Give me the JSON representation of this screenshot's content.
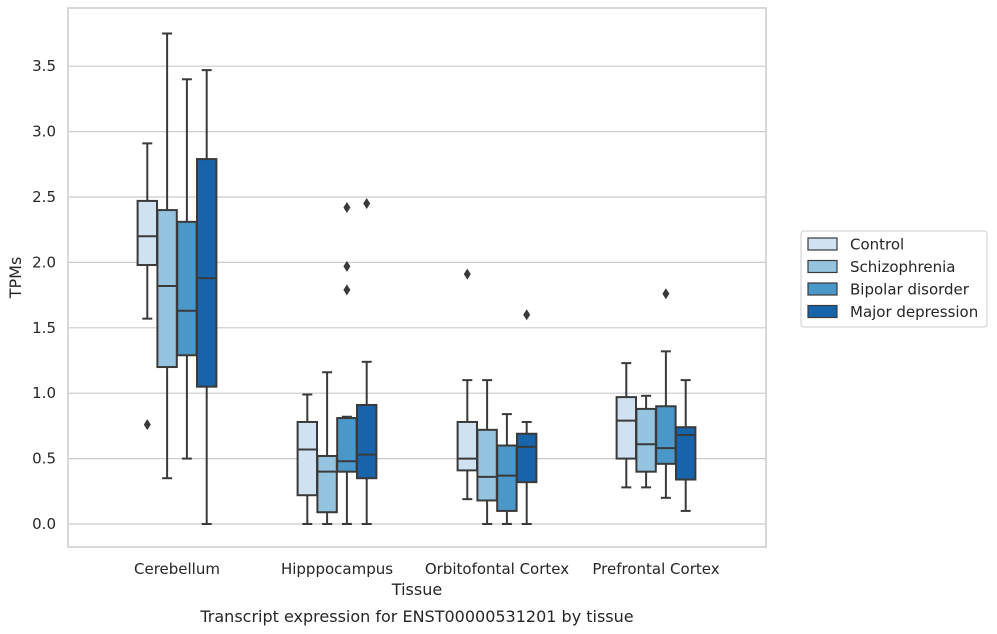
{
  "chart_data": {
    "type": "boxplot",
    "title": "Transcript expression for ENST00000531201 by tissue",
    "xlabel": "Tissue",
    "ylabel": "TPMs",
    "ylim": [
      -0.18,
      3.97
    ],
    "yticks": [
      0.0,
      0.5,
      1.0,
      1.5,
      2.0,
      2.5,
      3.0,
      3.5
    ],
    "ytick_labels": [
      "0.0",
      "0.5",
      "1.0",
      "1.5",
      "2.0",
      "2.5",
      "3.0",
      "3.5"
    ],
    "grid": "horizontal",
    "legend_placement": "right",
    "categories": [
      "Cerebellum",
      "Hipppocampus",
      "Orbitofontal Cortex",
      "Prefrontal Cortex"
    ],
    "series": [
      {
        "name": "Control",
        "color": "#d0e1f2",
        "boxes": [
          {
            "whislo": 1.57,
            "q1": 1.98,
            "med": 2.2,
            "q3": 2.47,
            "whishi": 2.91,
            "fliers": [
              0.76
            ]
          },
          {
            "whislo": 0.0,
            "q1": 0.22,
            "med": 0.57,
            "q3": 0.78,
            "whishi": 0.99,
            "fliers": []
          },
          {
            "whislo": 0.19,
            "q1": 0.41,
            "med": 0.5,
            "q3": 0.78,
            "whishi": 1.1,
            "fliers": [
              1.91
            ]
          },
          {
            "whislo": 0.28,
            "q1": 0.5,
            "med": 0.79,
            "q3": 0.97,
            "whishi": 1.23,
            "fliers": []
          }
        ]
      },
      {
        "name": "Schizophrenia",
        "color": "#94c4df",
        "boxes": [
          {
            "whislo": 0.35,
            "q1": 1.2,
            "med": 1.82,
            "q3": 2.4,
            "whishi": 3.75,
            "fliers": []
          },
          {
            "whislo": 0.0,
            "q1": 0.09,
            "med": 0.4,
            "q3": 0.52,
            "whishi": 1.16,
            "fliers": []
          },
          {
            "whislo": 0.0,
            "q1": 0.18,
            "med": 0.36,
            "q3": 0.72,
            "whishi": 1.1,
            "fliers": []
          },
          {
            "whislo": 0.28,
            "q1": 0.4,
            "med": 0.61,
            "q3": 0.88,
            "whishi": 0.98,
            "fliers": []
          }
        ]
      },
      {
        "name": "Bipolar disorder",
        "color": "#4a98c9",
        "boxes": [
          {
            "whislo": 0.5,
            "q1": 1.29,
            "med": 1.63,
            "q3": 2.31,
            "whishi": 3.4,
            "fliers": []
          },
          {
            "whislo": 0.0,
            "q1": 0.4,
            "med": 0.48,
            "q3": 0.81,
            "whishi": 0.82,
            "fliers": [
              2.42,
              1.97,
              1.79
            ]
          },
          {
            "whislo": 0.0,
            "q1": 0.1,
            "med": 0.37,
            "q3": 0.6,
            "whishi": 0.84,
            "fliers": []
          },
          {
            "whislo": 0.2,
            "q1": 0.46,
            "med": 0.58,
            "q3": 0.9,
            "whishi": 1.32,
            "fliers": [
              1.76
            ]
          }
        ]
      },
      {
        "name": "Major depression",
        "color": "#1764ab",
        "boxes": [
          {
            "whislo": 0.0,
            "q1": 1.05,
            "med": 1.88,
            "q3": 2.79,
            "whishi": 3.47,
            "fliers": []
          },
          {
            "whislo": 0.0,
            "q1": 0.35,
            "med": 0.53,
            "q3": 0.91,
            "whishi": 1.24,
            "fliers": [
              2.45
            ]
          },
          {
            "whislo": 0.0,
            "q1": 0.32,
            "med": 0.59,
            "q3": 0.69,
            "whishi": 0.78,
            "fliers": [
              1.6
            ]
          },
          {
            "whislo": 0.1,
            "q1": 0.34,
            "med": 0.68,
            "q3": 0.74,
            "whishi": 1.1,
            "fliers": []
          }
        ]
      }
    ]
  }
}
